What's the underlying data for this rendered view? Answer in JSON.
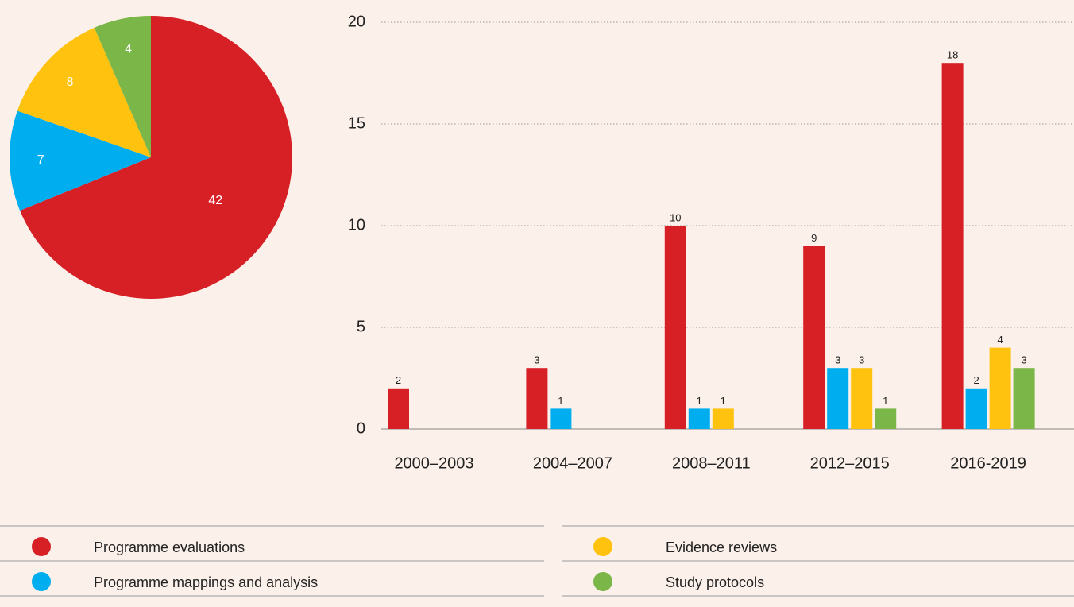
{
  "chart_data": [
    {
      "type": "pie",
      "values": [
        42,
        7,
        8,
        4
      ],
      "colors": [
        "#d71f26",
        "#00aeef",
        "#ffc20e",
        "#7ab648"
      ]
    },
    {
      "type": "bar",
      "categories": [
        "2000–2003",
        "2004–2007",
        "2008–2011",
        "2012–2015",
        "2016-2019"
      ],
      "series": [
        {
          "name": "Programme evaluations",
          "color": "#d71f26",
          "values": [
            2,
            3,
            10,
            9,
            18
          ]
        },
        {
          "name": "Programme mappings and analysis",
          "color": "#00aeef",
          "values": [
            null,
            1,
            1,
            3,
            2
          ]
        },
        {
          "name": "Evidence reviews",
          "color": "#ffc20e",
          "values": [
            null,
            null,
            1,
            3,
            4
          ]
        },
        {
          "name": "Study protocols",
          "color": "#7ab648",
          "values": [
            null,
            null,
            null,
            1,
            3
          ]
        }
      ],
      "ylim": [
        0,
        20
      ],
      "yticks": [
        0,
        5,
        10,
        15,
        20
      ],
      "grid": true
    }
  ]
}
